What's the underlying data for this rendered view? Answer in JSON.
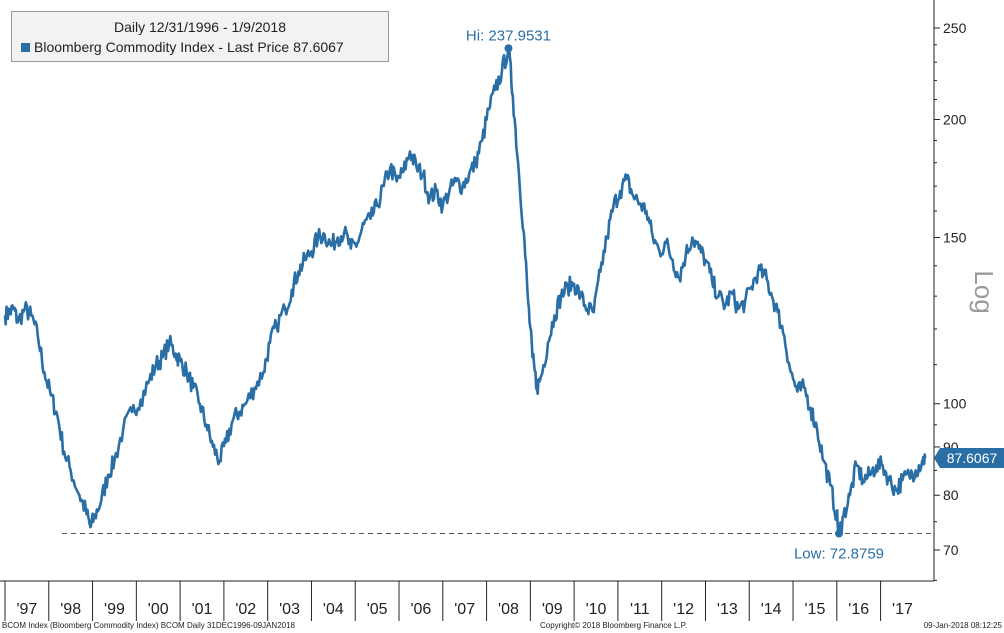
{
  "legend": {
    "title": "Daily 12/31/1996 - 1/9/2018",
    "entry": "Bloomberg Commodity Index - Last Price 87.6067"
  },
  "footer": {
    "left": "BCOM Index (Bloomberg Commodity Index) BCOM  Daily 31DEC1996-09JAN2018",
    "center": "Copyright© 2018 Bloomberg Finance L.P.",
    "right": "09-Jan-2018 08:12:25"
  },
  "colors": {
    "line": "#2a6ea6",
    "annotation_text": "#2a6ea6",
    "axis": "#222222",
    "dashed_line": "#555555",
    "legend_bg": "#f2f2f2"
  },
  "chart_data": {
    "type": "line",
    "title": "",
    "y_scale": "log",
    "ylabel": "Log",
    "ylim": [
      65,
      262
    ],
    "y_ticks": [
      70,
      80,
      90,
      100,
      150,
      200,
      250
    ],
    "x_ticks": [
      "'97",
      "'98",
      "'99",
      "'00",
      "'01",
      "'02",
      "'03",
      "'04",
      "'05",
      "'06",
      "'07",
      "'08",
      "'09",
      "'10",
      "'11",
      "'12",
      "'13",
      "'14",
      "'15",
      "'16",
      "'17"
    ],
    "grid": false,
    "legend_position": "top-left",
    "series": [
      {
        "name": "Bloomberg Commodity Index",
        "points": [
          {
            "x": 1997.0,
            "y": 124
          },
          {
            "x": 1997.1,
            "y": 125
          },
          {
            "x": 1997.2,
            "y": 126
          },
          {
            "x": 1997.3,
            "y": 122
          },
          {
            "x": 1997.45,
            "y": 126
          },
          {
            "x": 1997.6,
            "y": 124
          },
          {
            "x": 1997.75,
            "y": 118
          },
          {
            "x": 1997.9,
            "y": 108
          },
          {
            "x": 1998.05,
            "y": 102
          },
          {
            "x": 1998.2,
            "y": 97
          },
          {
            "x": 1998.35,
            "y": 89
          },
          {
            "x": 1998.5,
            "y": 85
          },
          {
            "x": 1998.7,
            "y": 80
          },
          {
            "x": 1998.85,
            "y": 77
          },
          {
            "x": 1998.95,
            "y": 74
          },
          {
            "x": 1999.05,
            "y": 76
          },
          {
            "x": 1999.2,
            "y": 79
          },
          {
            "x": 1999.35,
            "y": 84
          },
          {
            "x": 1999.5,
            "y": 87
          },
          {
            "x": 1999.7,
            "y": 94
          },
          {
            "x": 1999.9,
            "y": 98
          },
          {
            "x": 2000.1,
            "y": 101
          },
          {
            "x": 2000.3,
            "y": 106
          },
          {
            "x": 2000.45,
            "y": 110
          },
          {
            "x": 2000.6,
            "y": 112
          },
          {
            "x": 2000.75,
            "y": 116
          },
          {
            "x": 2000.9,
            "y": 113
          },
          {
            "x": 2001.0,
            "y": 111
          },
          {
            "x": 2001.15,
            "y": 108
          },
          {
            "x": 2001.3,
            "y": 104
          },
          {
            "x": 2001.45,
            "y": 100
          },
          {
            "x": 2001.6,
            "y": 95
          },
          {
            "x": 2001.75,
            "y": 90
          },
          {
            "x": 2001.9,
            "y": 87
          },
          {
            "x": 2002.05,
            "y": 91
          },
          {
            "x": 2002.2,
            "y": 96
          },
          {
            "x": 2002.35,
            "y": 98
          },
          {
            "x": 2002.5,
            "y": 100
          },
          {
            "x": 2002.7,
            "y": 104
          },
          {
            "x": 2002.9,
            "y": 108
          },
          {
            "x": 2003.05,
            "y": 116
          },
          {
            "x": 2003.2,
            "y": 121
          },
          {
            "x": 2003.4,
            "y": 126
          },
          {
            "x": 2003.55,
            "y": 132
          },
          {
            "x": 2003.7,
            "y": 138
          },
          {
            "x": 2003.85,
            "y": 142
          },
          {
            "x": 2004.0,
            "y": 145
          },
          {
            "x": 2004.15,
            "y": 150
          },
          {
            "x": 2004.3,
            "y": 151
          },
          {
            "x": 2004.45,
            "y": 147
          },
          {
            "x": 2004.6,
            "y": 150
          },
          {
            "x": 2004.75,
            "y": 152
          },
          {
            "x": 2004.9,
            "y": 146
          },
          {
            "x": 2005.05,
            "y": 148
          },
          {
            "x": 2005.2,
            "y": 155
          },
          {
            "x": 2005.35,
            "y": 157
          },
          {
            "x": 2005.5,
            "y": 162
          },
          {
            "x": 2005.65,
            "y": 170
          },
          {
            "x": 2005.8,
            "y": 178
          },
          {
            "x": 2005.95,
            "y": 172
          },
          {
            "x": 2006.1,
            "y": 176
          },
          {
            "x": 2006.25,
            "y": 185
          },
          {
            "x": 2006.4,
            "y": 178
          },
          {
            "x": 2006.55,
            "y": 175
          },
          {
            "x": 2006.7,
            "y": 165
          },
          {
            "x": 2006.85,
            "y": 168
          },
          {
            "x": 2007.0,
            "y": 162
          },
          {
            "x": 2007.15,
            "y": 168
          },
          {
            "x": 2007.3,
            "y": 172
          },
          {
            "x": 2007.45,
            "y": 170
          },
          {
            "x": 2007.6,
            "y": 175
          },
          {
            "x": 2007.75,
            "y": 180
          },
          {
            "x": 2007.9,
            "y": 190
          },
          {
            "x": 2008.05,
            "y": 205
          },
          {
            "x": 2008.2,
            "y": 215
          },
          {
            "x": 2008.35,
            "y": 225
          },
          {
            "x": 2008.5,
            "y": 237.9531
          },
          {
            "x": 2008.6,
            "y": 212
          },
          {
            "x": 2008.72,
            "y": 180
          },
          {
            "x": 2008.85,
            "y": 152
          },
          {
            "x": 2008.95,
            "y": 128
          },
          {
            "x": 2009.05,
            "y": 112
          },
          {
            "x": 2009.15,
            "y": 104
          },
          {
            "x": 2009.25,
            "y": 107
          },
          {
            "x": 2009.4,
            "y": 116
          },
          {
            "x": 2009.55,
            "y": 124
          },
          {
            "x": 2009.7,
            "y": 130
          },
          {
            "x": 2009.85,
            "y": 133
          },
          {
            "x": 2010.0,
            "y": 134
          },
          {
            "x": 2010.15,
            "y": 130
          },
          {
            "x": 2010.3,
            "y": 126
          },
          {
            "x": 2010.45,
            "y": 125
          },
          {
            "x": 2010.6,
            "y": 138
          },
          {
            "x": 2010.75,
            "y": 150
          },
          {
            "x": 2010.9,
            "y": 162
          },
          {
            "x": 2011.05,
            "y": 168
          },
          {
            "x": 2011.2,
            "y": 173
          },
          {
            "x": 2011.35,
            "y": 166
          },
          {
            "x": 2011.5,
            "y": 163
          },
          {
            "x": 2011.65,
            "y": 160
          },
          {
            "x": 2011.8,
            "y": 150
          },
          {
            "x": 2011.95,
            "y": 145
          },
          {
            "x": 2012.1,
            "y": 148
          },
          {
            "x": 2012.25,
            "y": 142
          },
          {
            "x": 2012.4,
            "y": 136
          },
          {
            "x": 2012.55,
            "y": 144
          },
          {
            "x": 2012.7,
            "y": 150
          },
          {
            "x": 2012.85,
            "y": 146
          },
          {
            "x": 2013.0,
            "y": 142
          },
          {
            "x": 2013.15,
            "y": 135
          },
          {
            "x": 2013.3,
            "y": 130
          },
          {
            "x": 2013.45,
            "y": 127
          },
          {
            "x": 2013.6,
            "y": 131
          },
          {
            "x": 2013.75,
            "y": 126
          },
          {
            "x": 2013.9,
            "y": 128
          },
          {
            "x": 2014.05,
            "y": 133
          },
          {
            "x": 2014.2,
            "y": 138
          },
          {
            "x": 2014.35,
            "y": 137
          },
          {
            "x": 2014.5,
            "y": 131
          },
          {
            "x": 2014.65,
            "y": 125
          },
          {
            "x": 2014.8,
            "y": 118
          },
          {
            "x": 2014.95,
            "y": 108
          },
          {
            "x": 2015.1,
            "y": 103
          },
          {
            "x": 2015.25,
            "y": 104
          },
          {
            "x": 2015.4,
            "y": 99
          },
          {
            "x": 2015.55,
            "y": 94
          },
          {
            "x": 2015.7,
            "y": 87
          },
          {
            "x": 2015.85,
            "y": 82
          },
          {
            "x": 2016.0,
            "y": 76
          },
          {
            "x": 2016.05,
            "y": 72.8759
          },
          {
            "x": 2016.15,
            "y": 76
          },
          {
            "x": 2016.3,
            "y": 80
          },
          {
            "x": 2016.45,
            "y": 86
          },
          {
            "x": 2016.6,
            "y": 83
          },
          {
            "x": 2016.75,
            "y": 84
          },
          {
            "x": 2016.9,
            "y": 86
          },
          {
            "x": 2017.05,
            "y": 86
          },
          {
            "x": 2017.2,
            "y": 83
          },
          {
            "x": 2017.35,
            "y": 81
          },
          {
            "x": 2017.5,
            "y": 83
          },
          {
            "x": 2017.65,
            "y": 84
          },
          {
            "x": 2017.8,
            "y": 85
          },
          {
            "x": 2017.95,
            "y": 87
          },
          {
            "x": 2018.02,
            "y": 87.6067
          }
        ]
      }
    ],
    "annotations": {
      "high": {
        "label": "Hi: 237.9531",
        "x": 2008.5,
        "y": 237.9531
      },
      "low": {
        "label": "Low: 72.8759",
        "x": 2016.05,
        "y": 72.8759
      },
      "last_price": {
        "label": "87.6067",
        "y": 87.6067
      },
      "low_reference_line_y": 72.8759
    }
  }
}
